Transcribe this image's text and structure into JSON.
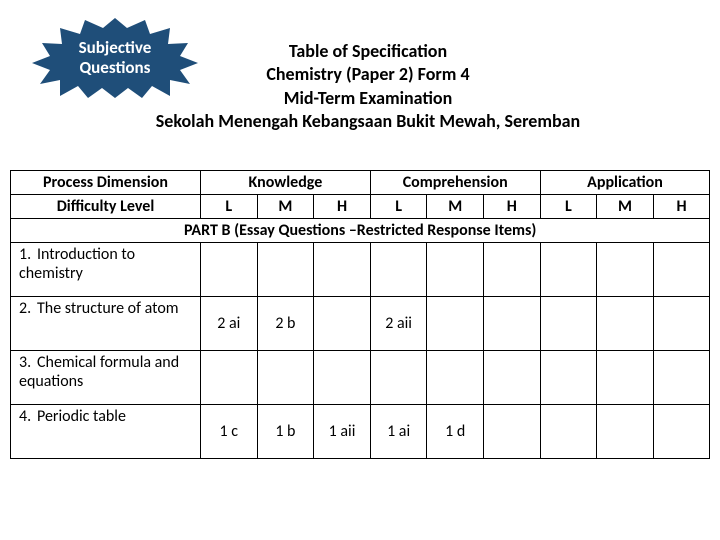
{
  "burst": {
    "line1": "Subjective",
    "line2": "Questions",
    "fill": "#1f4e79",
    "text_color": "#ffffff"
  },
  "title": {
    "l1": "Table of Specification",
    "l2": "Chemistry (Paper  2) Form 4",
    "l3": "Mid-Term Examination",
    "l4": "Sekolah Menengah Kebangsaan Bukit Mewah, Seremban"
  },
  "headers": {
    "process_dimension": "Process Dimension",
    "difficulty_level": "Difficulty Level",
    "knowledge": "Knowledge",
    "comprehension": "Comprehension",
    "application": "Application",
    "L": "L",
    "M": "M",
    "H": "H"
  },
  "partb": "PART B (Essay Questions –Restricted Response Items)",
  "rows": [
    {
      "num": "1.",
      "topic": "Introduction to chemistry",
      "cells": [
        "",
        "",
        "",
        "",
        "",
        "",
        "",
        "",
        ""
      ]
    },
    {
      "num": "2.",
      "topic": "The structure of atom",
      "cells": [
        "2 ai",
        "2 b",
        "",
        "2 aii",
        "",
        "",
        "",
        "",
        ""
      ]
    },
    {
      "num": "3.",
      "topic": "Chemical formula and equations",
      "cells": [
        "",
        "",
        "",
        "",
        "",
        "",
        "",
        "",
        ""
      ]
    },
    {
      "num": "4.",
      "topic": "Periodic table",
      "cells": [
        "1 c",
        "1 b",
        "1 aii",
        "1 ai",
        "1 d",
        "",
        "",
        "",
        ""
      ]
    }
  ]
}
